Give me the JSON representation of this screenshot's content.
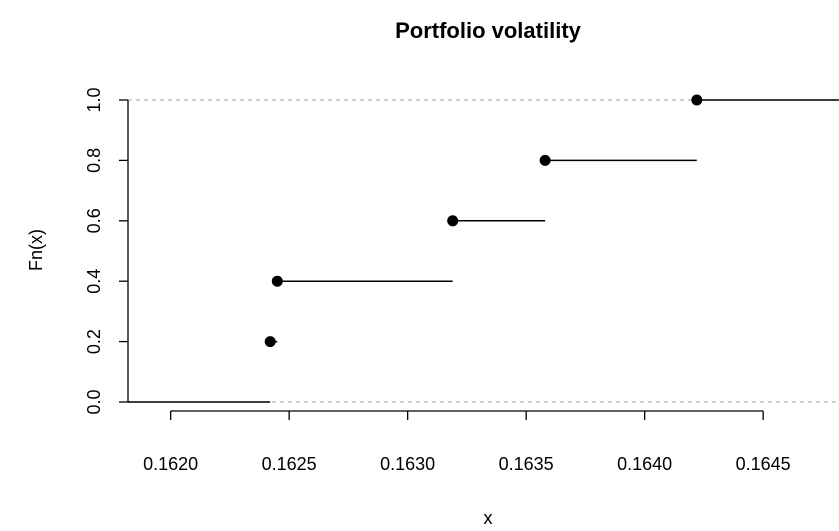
{
  "chart_data": {
    "type": "line",
    "subtype": "step (empirical CDF)",
    "title": "Portfolio volatility",
    "xlabel": "x",
    "ylabel": "Fn(x)",
    "xlim": [
      0.16182,
      0.16482
    ],
    "ylim": [
      0.0,
      1.0
    ],
    "x_ticks": [
      0.162,
      0.1625,
      0.163,
      0.1635,
      0.164,
      0.1645
    ],
    "x_tick_labels": [
      "0.1620",
      "0.1625",
      "0.1630",
      "0.1635",
      "0.1640",
      "0.1645"
    ],
    "y_ticks": [
      0.0,
      0.2,
      0.4,
      0.6,
      0.8,
      1.0
    ],
    "y_tick_labels": [
      "0.0",
      "0.2",
      "0.4",
      "0.6",
      "0.8",
      "1.0"
    ],
    "reference_lines_y": [
      0.0,
      1.0
    ],
    "grid": false,
    "legend": "none",
    "points": [
      {
        "x": 0.16242,
        "y": 0.2
      },
      {
        "x": 0.16245,
        "y": 0.4
      },
      {
        "x": 0.16319,
        "y": 0.6
      },
      {
        "x": 0.16358,
        "y": 0.8
      },
      {
        "x": 0.16422,
        "y": 1.0
      }
    ]
  }
}
